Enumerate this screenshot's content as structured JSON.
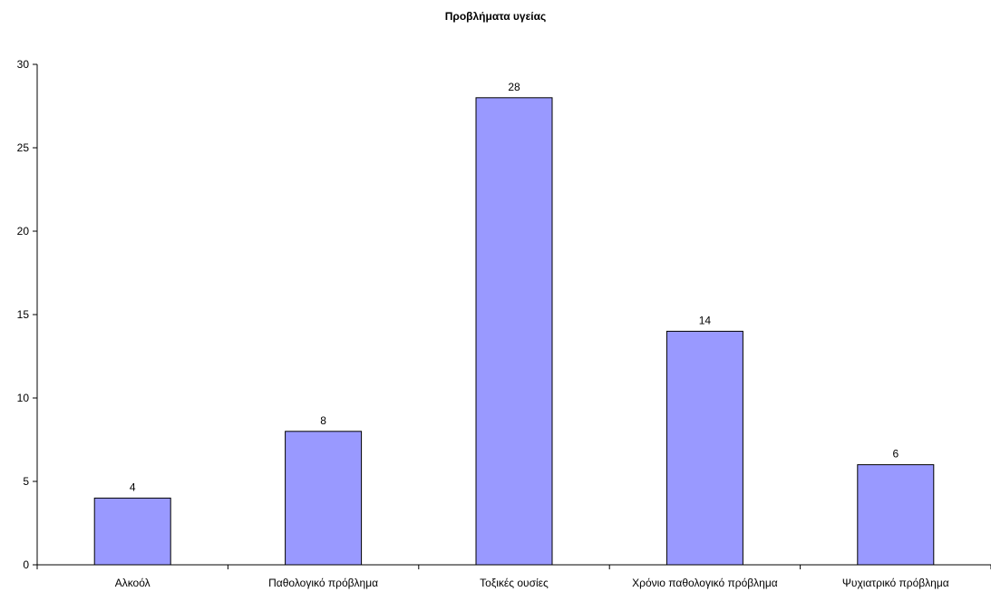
{
  "chart_data": {
    "type": "bar",
    "title": "Προβλήματα υγείας",
    "categories": [
      "Αλκοόλ",
      "Παθολογικό πρόβλημα",
      "Τοξικές ουσίες",
      "Χρόνιο παθολογικό πρόβλημα",
      "Ψυχιατρικό πρόβλημα"
    ],
    "values": [
      4,
      8,
      28,
      14,
      6
    ],
    "ylim": [
      0,
      30
    ],
    "yticks": [
      0,
      5,
      10,
      15,
      20,
      25,
      30
    ],
    "xlabel": "",
    "ylabel": "",
    "grid": false,
    "legend": "none",
    "colors": {
      "bar_fill": "#9999ff",
      "bar_stroke": "#000000",
      "axis": "#000000"
    }
  }
}
